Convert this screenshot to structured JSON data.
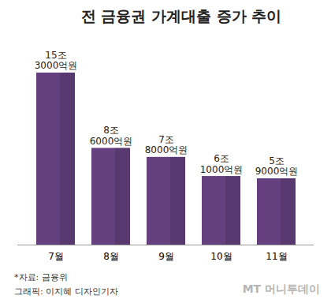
{
  "chart_data": {
    "type": "bar",
    "title": "전 금융권 가계대출 증가 추이",
    "categories": [
      "7월",
      "8월",
      "9월",
      "10월",
      "11월"
    ],
    "values": [
      15.3,
      8.6,
      7.8,
      6.1,
      5.9
    ],
    "value_labels": [
      "15조\n3000억원",
      "8조\n6000억원",
      "7조\n8000억원",
      "6조\n1000억원",
      "5조\n9000억원"
    ],
    "data_labels": true,
    "color": "#64407f",
    "ylim": [
      0,
      16
    ],
    "tick_labels": "x",
    "grid": false,
    "source": "*자료: 금융위",
    "credit": "그래픽: 이지혜 디자인기자",
    "watermark": "MT 머니투데이"
  }
}
